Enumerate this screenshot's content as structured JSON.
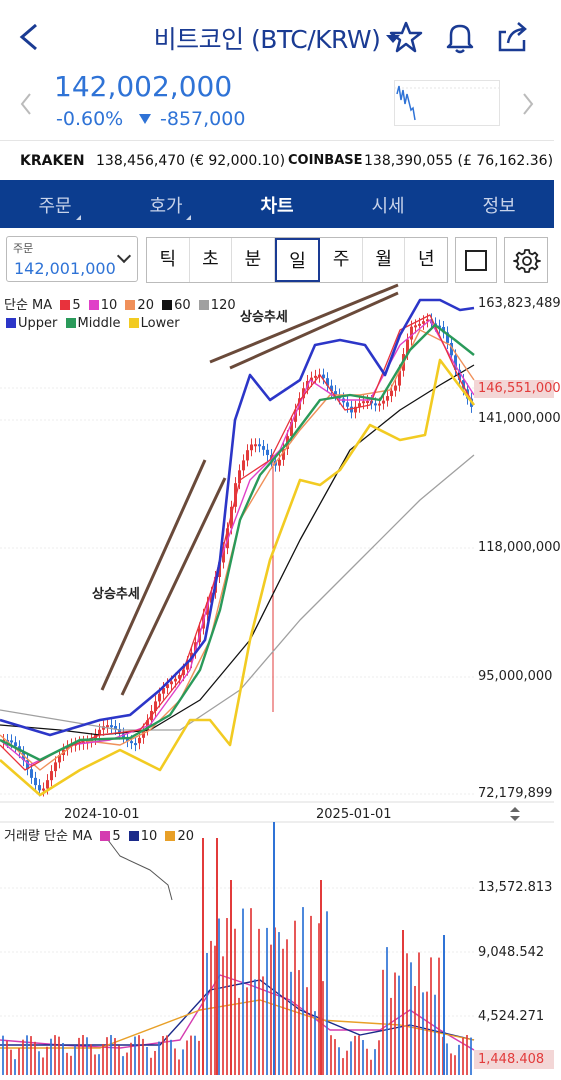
{
  "header": {
    "title": "비트코인 (BTC/KRW)"
  },
  "ticker": {
    "price": "142,002,000",
    "change_pct": "-0.60%",
    "change_amt": "-857,000"
  },
  "exchanges": [
    {
      "name": "KRAKEN",
      "value": "138,456,470 (€ 92,000.10)"
    },
    {
      "name": "COINBASE",
      "value": "138,390,055 (£ 76,162.36)"
    }
  ],
  "tabs": [
    "주문",
    "호가",
    "차트",
    "시세",
    "정보"
  ],
  "active_tab": "차트",
  "order": {
    "label": "주문",
    "value": "142,001,000"
  },
  "periods": [
    "틱",
    "초",
    "분",
    "일",
    "주",
    "월",
    "년"
  ],
  "selected_period": "일",
  "legend": {
    "ma_prefix": "단순 MA",
    "ma": [
      {
        "n": "5",
        "c": "#e8323c"
      },
      {
        "n": "10",
        "c": "#e040c8"
      },
      {
        "n": "20",
        "c": "#f0905a"
      },
      {
        "n": "60",
        "c": "#111111"
      },
      {
        "n": "120",
        "c": "#a0a0a0"
      }
    ],
    "bands": [
      {
        "n": "Upper",
        "c": "#2c36c8"
      },
      {
        "n": "Middle",
        "c": "#2a9a5a"
      },
      {
        "n": "Lower",
        "c": "#f2cb22"
      }
    ]
  },
  "annotations": [
    "상승추세",
    "상승추세"
  ],
  "price_axis": [
    "163,823,489",
    "141,000,000",
    "118,000,000",
    "95,000,000",
    "72,179,899"
  ],
  "current_price": "146,551,000",
  "date_axis": [
    "2024-10-01",
    "2025-01-01"
  ],
  "volume_legend": {
    "prefix": "거래량 단순 MA",
    "ma": [
      {
        "n": "5",
        "c": "#d43bb0"
      },
      {
        "n": "10",
        "c": "#1b2a8a"
      },
      {
        "n": "20",
        "c": "#e8a028"
      }
    ]
  },
  "volume_axis": [
    "13,572.813",
    "9,048.542",
    "4,524.271"
  ],
  "current_volume": "1,448.408",
  "colors": {
    "accent": "#2f73d6",
    "navy": "#0c3d8f",
    "up": "#e23b3b",
    "down": "#2f73d6"
  }
}
